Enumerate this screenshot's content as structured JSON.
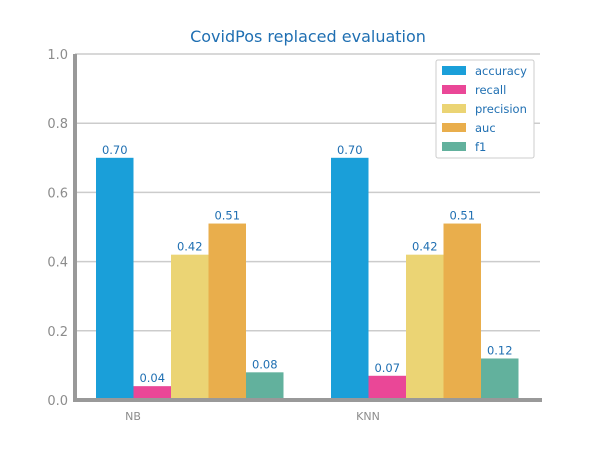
{
  "chart_data": {
    "type": "bar",
    "title": "CovidPos replaced evaluation",
    "xlabel": "",
    "ylabel": "",
    "categories": [
      "NB",
      "KNN"
    ],
    "ylim": [
      0,
      1.0
    ],
    "yticks": [
      "0.0",
      "0.2",
      "0.4",
      "0.6",
      "0.8",
      "1.0"
    ],
    "grid": "horizontal",
    "legend_position": "top-right",
    "series": [
      {
        "name": "accuracy",
        "color": "#1a9fd9",
        "values": [
          0.7,
          0.7
        ],
        "labels": [
          "0.70",
          "0.70"
        ]
      },
      {
        "name": "recall",
        "color": "#ea4797",
        "values": [
          0.04,
          0.07
        ],
        "labels": [
          "0.04",
          "0.07"
        ]
      },
      {
        "name": "precision",
        "color": "#ebd474",
        "values": [
          0.42,
          0.42
        ],
        "labels": [
          "0.42",
          "0.42"
        ]
      },
      {
        "name": "auc",
        "color": "#e9ae4c",
        "values": [
          0.51,
          0.51
        ],
        "labels": [
          "0.51",
          "0.51"
        ]
      },
      {
        "name": "f1",
        "color": "#62b19d",
        "values": [
          0.08,
          0.12
        ],
        "labels": [
          "0.08",
          "0.12"
        ]
      }
    ]
  }
}
